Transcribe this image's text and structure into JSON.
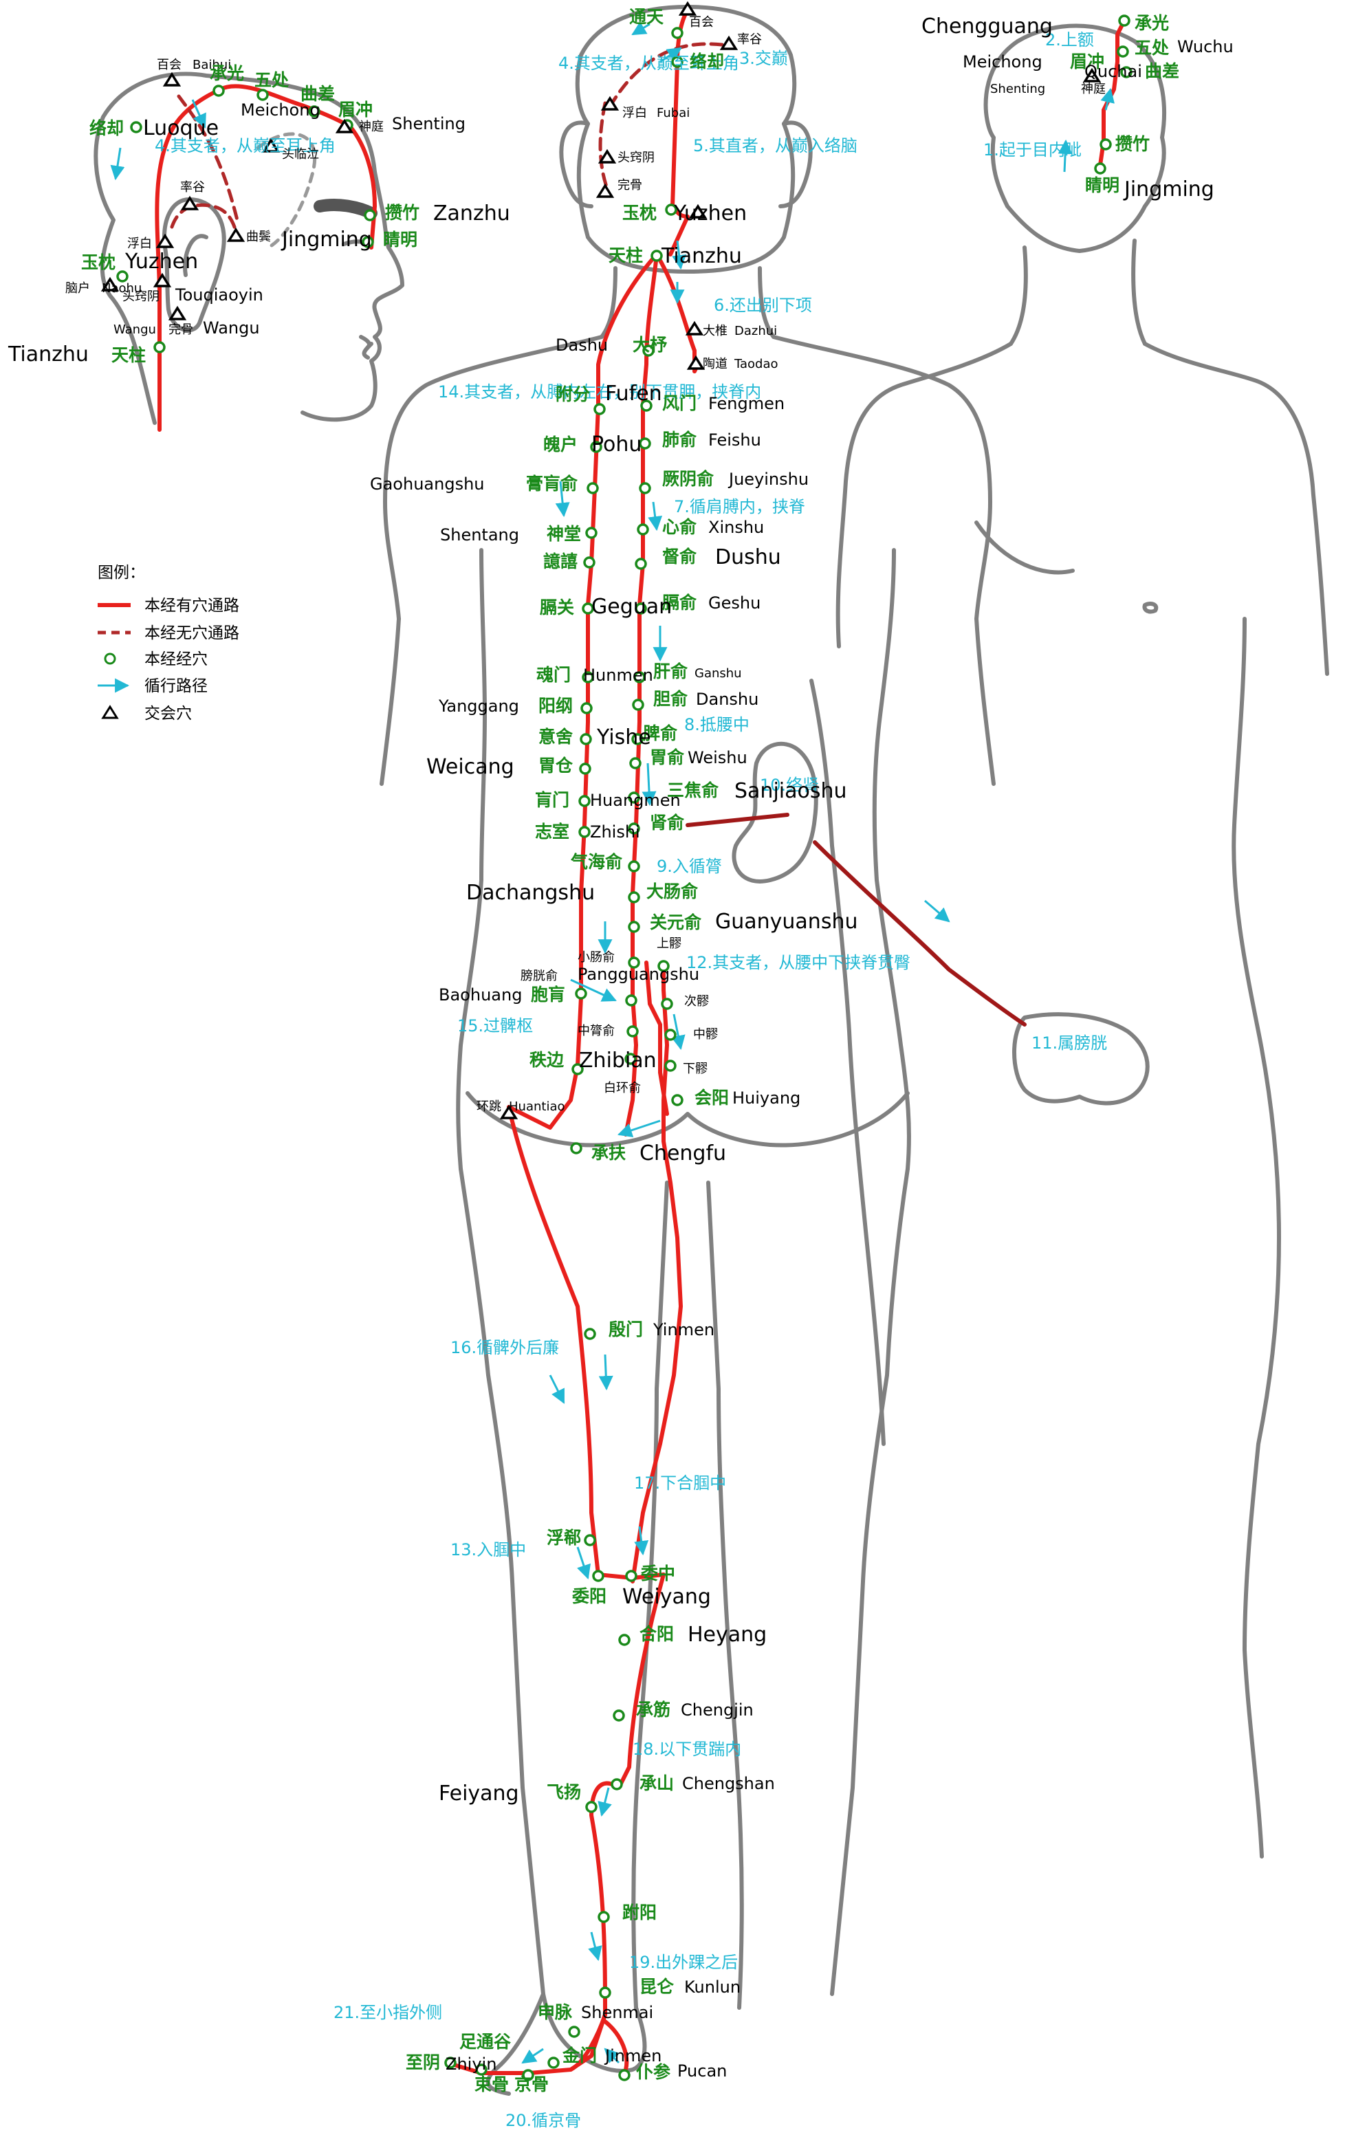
{
  "legend": {
    "title": "图例：",
    "items": [
      {
        "label": "本经有穴通路"
      },
      {
        "label": "本经无穴通路"
      },
      {
        "label": "本经经穴"
      },
      {
        "label": "循行路径"
      },
      {
        "label": "交会穴"
      }
    ]
  },
  "colors": {
    "meridian": "#e8201c",
    "meridian_dashed": "#b02828",
    "branch": "#a01818",
    "acupoint": "#1a8a1a",
    "route_text": "#22b8d4",
    "outline": "#808080"
  },
  "route_labels": {
    "r1": "1.起于目内眦",
    "r2": "2.上额",
    "r3": "3.交巅",
    "r4": "4.其支者，从巅至耳上角",
    "r5": "5.其直者，从巅入络脑",
    "r6": "6.还出别下项",
    "r7": "7.循肩膊内，挟脊",
    "r8": "8.抵腰中",
    "r9": "9.入循膂",
    "r10": "10.络肾",
    "r11": "11.属膀胱",
    "r12": "12.其支者，从腰中下挟脊贯臀",
    "r13": "13.入腘中",
    "r14": "14.其支者，从膊内左右，别下贯胛，挟脊内",
    "r15": "15.过髀枢",
    "r16": "16.循髀外后廉",
    "r17": "17.下合腘中",
    "r18": "18.以下贯踹内",
    "r19": "19.出外踝之后",
    "r20": "20.循京骨",
    "r21": "21.至小指外侧"
  },
  "labels": {
    "chengguang": "Chengguang",
    "chengguang_cn": "承光",
    "wuchu": "Wuchu",
    "wuchu_cn": "五处",
    "meichong": "Meichong",
    "meichong_cn": "眉冲",
    "shenting": "Shenting",
    "shenting_cn": "神庭",
    "quchai": "Quchai",
    "quchai_cn": "曲差",
    "zanzhu": "Zanzhu",
    "zanzhu_cn": "攒竹",
    "jingming": "Jingming",
    "jingming_cn": "睛明",
    "baihui": "Baihui",
    "baihui_cn": "百会",
    "tongtian_cn": "通天",
    "luoque": "Luoque",
    "luoque_cn": "络却",
    "shuaigu_cn": "率谷",
    "fubai": "Fubai",
    "fubai_cn": "浮白",
    "touqiaoyin": "Touqiaoyin",
    "touqiaoyin_cn": "头窍阴",
    "wangu": "Wangu",
    "wangu_cn": "完骨",
    "toulinqi_cn": "头临泣",
    "qubin_cn": "曲鬓",
    "naohu": "Naohu",
    "naohu_cn": "脑户",
    "yuzhen": "Yuzhen",
    "yuzhen_cn": "玉枕",
    "tianzhu": "Tianzhu",
    "tianzhu_cn": "天柱",
    "dazhui": "Dazhui",
    "dazhui_cn": "大椎",
    "taodao": "Taodao",
    "taodao_cn": "陶道",
    "dashu": "Dashu",
    "dashu_cn": "大杼",
    "fengmen": "Fengmen",
    "fengmen_cn": "风门",
    "feishu": "Feishu",
    "feishu_cn": "肺俞",
    "jueyinshu": "Jueyinshu",
    "jueyinshu_cn": "厥阴俞",
    "xinshu": "Xinshu",
    "xinshu_cn": "心俞",
    "dushu": "Dushu",
    "dushu_cn": "督俞",
    "geshu": "Geshu",
    "geshu_cn": "膈俞",
    "ganshu": "Ganshu",
    "ganshu_cn": "肝俞",
    "danshu": "Danshu",
    "danshu_cn": "胆俞",
    "pishu_cn": "脾俞",
    "weishu": "Weishu",
    "weishu_cn": "胃俞",
    "sanjiaoshu": "Sanjiaoshu",
    "sanjiaoshu_cn": "三焦俞",
    "shenshu_cn": "肾俞",
    "qihaishu_cn": "气海俞",
    "dachangshu": "Dachangshu",
    "dachangshu_cn": "大肠俞",
    "guanyuanshu": "Guanyuanshu",
    "guanyuanshu_cn": "关元俞",
    "xiaochangshu_cn": "小肠俞",
    "pangguangshu": "Pangguangshu",
    "pangguangshu_cn": "膀胱俞",
    "zhonglushu_cn": "中膂俞",
    "baihuanshu_cn": "白环俞",
    "shangliao_cn": "上髎",
    "ciliao_cn": "次髎",
    "zhongliao_cn": "中髎",
    "xialiao_cn": "下髎",
    "huiyang": "Huiyang",
    "huiyang_cn": "会阳",
    "fufen": "Fufen",
    "fufen_cn": "附分",
    "pohu": "Pohu",
    "pohu_cn": "魄户",
    "gaohuangshu": "Gaohuangshu",
    "gaohuangshu_cn": "膏肓俞",
    "shentang": "Shentang",
    "shentang_cn": "神堂",
    "yixi_cn": "譩譆",
    "geguan": "Geguan",
    "geguan_cn": "膈关",
    "hunmen": "Hunmen",
    "hunmen_cn": "魂门",
    "yanggang": "Yanggang",
    "yanggang_cn": "阳纲",
    "yishe": "Yishe",
    "yishe_cn": "意舍",
    "weicang": "Weicang",
    "weicang_cn": "胃仓",
    "huangmen": "Huangmen",
    "huangmen_cn": "肓门",
    "zhishi": "Zhishi",
    "zhishi_cn": "志室",
    "baohuang": "Baohuang",
    "baohuang_cn": "胞肓",
    "zhibian": "Zhibian",
    "zhibian_cn": "秩边",
    "huantiao": "Huantiao",
    "huantiao_cn": "环跳",
    "chengfu": "Chengfu",
    "chengfu_cn": "承扶",
    "yinmen": "Yinmen",
    "yinmen_cn": "殷门",
    "fuxi_cn": "浮郗",
    "weiyang": "Weiyang",
    "weiyang_cn": "委阳",
    "weizhong_cn": "委中",
    "heyang": "Heyang",
    "heyang_cn": "合阳",
    "chengjin": "Chengjin",
    "chengjin_cn": "承筋",
    "chengshan": "Chengshan",
    "chengshan_cn": "承山",
    "feiyang": "Feiyang",
    "feiyang_cn": "飞扬",
    "fuyang_cn": "跗阳",
    "kunlun": "Kunlun",
    "kunlun_cn": "昆仑",
    "shenmai": "Shenmai",
    "shenmai_cn": "申脉",
    "jinmen": "Jinmen",
    "jinmen_cn": "金门",
    "pucan": "Pucan",
    "pucan_cn": "仆参",
    "zutonggu_cn": "足通谷",
    "zhiyin": "Zhiyin",
    "zhiyin_cn": "至阴",
    "shugu_cn": "束骨",
    "jinggu_cn": "京骨"
  }
}
